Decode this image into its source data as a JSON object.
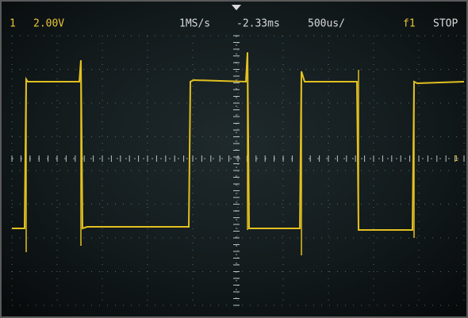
{
  "status_bar": {
    "channel": "1",
    "volts_per_div": "2.00V",
    "sample_rate": "1MS/s",
    "trigger_delay": "-2.33ms",
    "time_per_div": "500us/",
    "trigger": "f1",
    "run_state": "STOP"
  },
  "markers": {
    "ground": "1"
  }
}
